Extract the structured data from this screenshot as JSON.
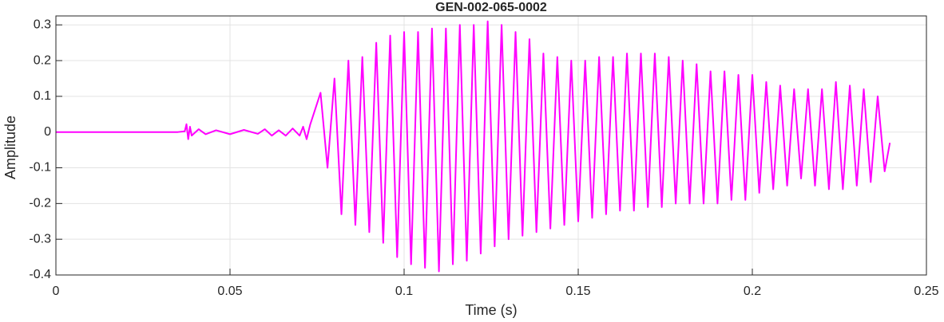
{
  "chart_data": {
    "type": "line",
    "title": "GEN-002-065-0002",
    "xlabel": "Time (s)",
    "ylabel": "Amplitude",
    "x": [
      0,
      0.035,
      0.037,
      0.0375,
      0.038,
      0.0385,
      0.039,
      0.041,
      0.043,
      0.046,
      0.05,
      0.054,
      0.058,
      0.06,
      0.062,
      0.064,
      0.066,
      0.068,
      0.07,
      0.071,
      0.072,
      0.073,
      0.074,
      0.076,
      0.078,
      0.08,
      0.082,
      0.084,
      0.086,
      0.088,
      0.09,
      0.092,
      0.094,
      0.096,
      0.098,
      0.1,
      0.102,
      0.104,
      0.106,
      0.108,
      0.11,
      0.112,
      0.114,
      0.116,
      0.118,
      0.12,
      0.122,
      0.124,
      0.126,
      0.128,
      0.13,
      0.132,
      0.134,
      0.136,
      0.138,
      0.14,
      0.142,
      0.144,
      0.146,
      0.148,
      0.15,
      0.152,
      0.154,
      0.156,
      0.158,
      0.16,
      0.162,
      0.164,
      0.166,
      0.168,
      0.17,
      0.172,
      0.174,
      0.176,
      0.178,
      0.18,
      0.182,
      0.184,
      0.186,
      0.188,
      0.19,
      0.192,
      0.194,
      0.196,
      0.198,
      0.2,
      0.202,
      0.204,
      0.206,
      0.208,
      0.21,
      0.212,
      0.214,
      0.216,
      0.218,
      0.22,
      0.222,
      0.224,
      0.226,
      0.228,
      0.23,
      0.232,
      0.234,
      0.236,
      0.238,
      0.2395
    ],
    "series": [
      {
        "color": "#ff00ff",
        "values": [
          0,
          0,
          0.002,
          0.022,
          -0.02,
          0.015,
          -0.01,
          0.008,
          -0.006,
          0.005,
          -0.006,
          0.006,
          -0.005,
          0.008,
          -0.01,
          0.005,
          -0.01,
          0.01,
          -0.01,
          0.015,
          -0.02,
          0.02,
          0.05,
          0.11,
          -0.1,
          0.15,
          -0.23,
          0.2,
          -0.26,
          0.21,
          -0.28,
          0.25,
          -0.31,
          0.27,
          -0.35,
          0.28,
          -0.37,
          0.28,
          -0.38,
          0.29,
          -0.39,
          0.29,
          -0.37,
          0.3,
          -0.36,
          0.3,
          -0.34,
          0.31,
          -0.32,
          0.3,
          -0.3,
          0.28,
          -0.29,
          0.26,
          -0.28,
          0.22,
          -0.27,
          0.21,
          -0.26,
          0.2,
          -0.25,
          0.2,
          -0.24,
          0.21,
          -0.23,
          0.21,
          -0.22,
          0.22,
          -0.22,
          0.22,
          -0.21,
          0.22,
          -0.21,
          0.21,
          -0.2,
          0.2,
          -0.2,
          0.19,
          -0.2,
          0.17,
          -0.2,
          0.17,
          -0.19,
          0.16,
          -0.19,
          0.16,
          -0.17,
          0.14,
          -0.16,
          0.13,
          -0.15,
          0.12,
          -0.13,
          0.12,
          -0.15,
          0.12,
          -0.16,
          0.14,
          -0.16,
          0.13,
          -0.15,
          0.12,
          -0.14,
          0.1,
          -0.11,
          -0.03
        ]
      }
    ],
    "xlim": [
      0,
      0.25
    ],
    "xticks": [
      0,
      0.05,
      0.1,
      0.15,
      0.2,
      0.25
    ],
    "ylim": [
      -0.4,
      0.325
    ],
    "yticks": [
      -0.4,
      -0.3,
      -0.2,
      -0.1,
      0,
      0.1,
      0.2,
      0.3
    ],
    "grid": true
  }
}
